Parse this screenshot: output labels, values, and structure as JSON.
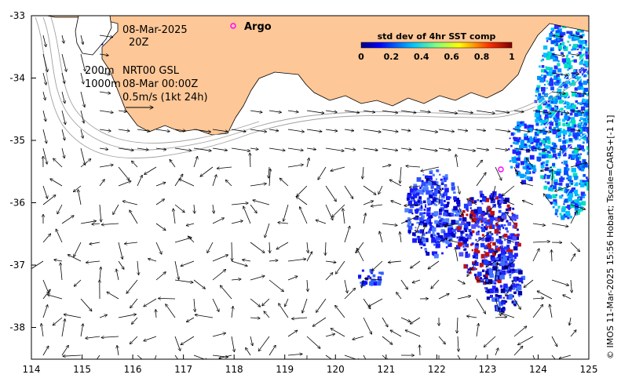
{
  "map": {
    "date_line": "08-Mar-2025",
    "time_line": "20Z",
    "product_line1_left": "200m",
    "product_line1_right": "NRT00 GSL",
    "product_line2_left": "1000m",
    "product_line2_right": "08-Mar 00:00Z",
    "scale_label": "0.5m/s (1kt 24h)",
    "argo_label": "Argo",
    "credit": "© IMOS 11-Mar-2025 15:56 Hobart; Tscale=CARS+[-1 1]",
    "x_ticks": [
      "114",
      "115",
      "116",
      "117",
      "118",
      "119",
      "120",
      "121",
      "122",
      "123",
      "124",
      "125"
    ],
    "y_ticks": [
      "-33",
      "-34",
      "-35",
      "-36",
      "-37",
      "-38"
    ],
    "land_color": "#fdc797",
    "colorbar": {
      "title": "std dev of 4hr SST comp",
      "ticks": [
        "0",
        "0.2",
        "0.4",
        "0.6",
        "0.8",
        "1"
      ],
      "colors": [
        "#00007f",
        "#0000ff",
        "#007fff",
        "#00ffff",
        "#7fff7f",
        "#ffff00",
        "#ff7f00",
        "#ff0000",
        "#7f0000"
      ]
    }
  }
}
